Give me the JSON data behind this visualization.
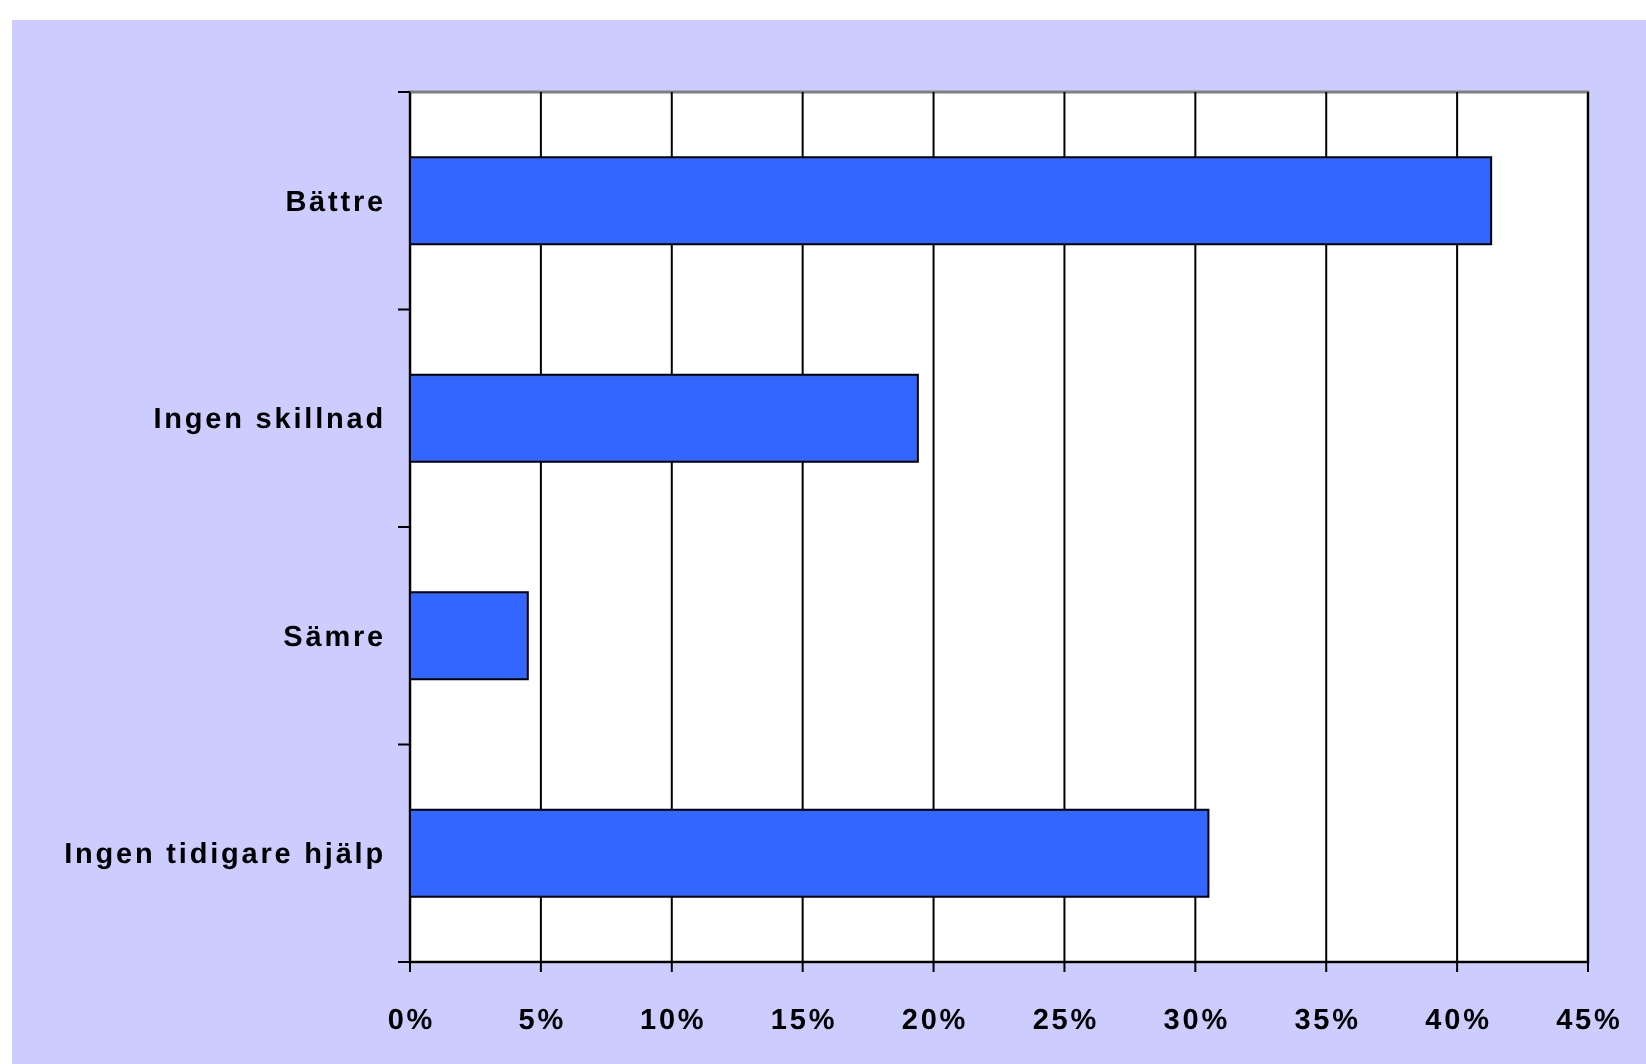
{
  "chart_data": {
    "type": "bar",
    "orientation": "horizontal",
    "categories": [
      "Bättre",
      "Ingen skillnad",
      "Sämre",
      "Ingen tidigare hjälp"
    ],
    "values": [
      41.3,
      19.4,
      4.5,
      30.5
    ],
    "color": "#3366ff",
    "xlim": [
      0,
      45
    ],
    "xticks": [
      {
        "value": 0,
        "label": "0%"
      },
      {
        "value": 5,
        "label": "5%"
      },
      {
        "value": 10,
        "label": "10%"
      },
      {
        "value": 15,
        "label": "15%"
      },
      {
        "value": 20,
        "label": "20%"
      },
      {
        "value": 25,
        "label": "25%"
      },
      {
        "value": 30,
        "label": "30%"
      },
      {
        "value": 35,
        "label": "35%"
      },
      {
        "value": 40,
        "label": "40%"
      },
      {
        "value": 45,
        "label": "45%"
      }
    ],
    "grid": "x"
  }
}
